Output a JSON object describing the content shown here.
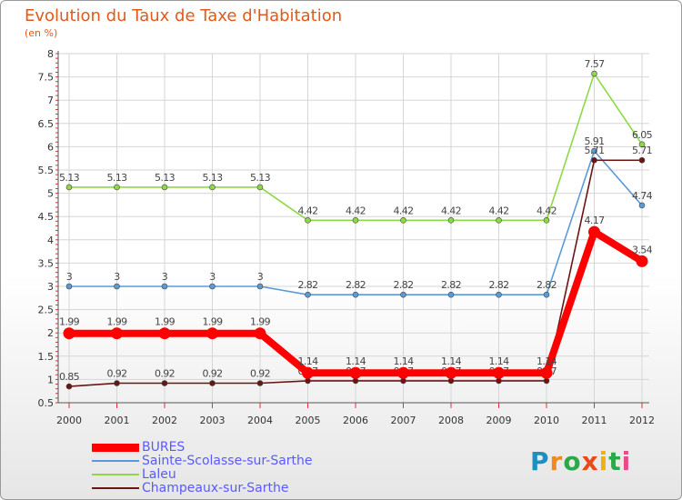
{
  "title": "Evolution du Taux de Taxe d'Habitation",
  "subtitle": "(en %)",
  "logo": {
    "letters": [
      "P",
      "r",
      "o",
      "x",
      "i",
      "t",
      "i"
    ],
    "colors": [
      "#1e90c0",
      "#f08a1c",
      "#2aa84a",
      "#e84a1a",
      "#f0b010",
      "#2aa84a",
      "#e84a8a"
    ]
  },
  "chart_data": {
    "type": "line",
    "title": "Evolution du Taux de Taxe d'Habitation",
    "ylabel": "(en %)",
    "x": [
      "2000",
      "2001",
      "2002",
      "2003",
      "2004",
      "2005",
      "2006",
      "2007",
      "2008",
      "2009",
      "2010",
      "2011",
      "2012"
    ],
    "ylim": [
      0.5,
      8
    ],
    "yticks": [
      "0.5",
      "1",
      "1.5",
      "2",
      "2.5",
      "3",
      "3.5",
      "4",
      "4.5",
      "5",
      "5.5",
      "6",
      "6.5",
      "7",
      "7.5",
      "8"
    ],
    "grid": true,
    "legend_position": "bottom-left",
    "series": [
      {
        "name": "Laleu",
        "color": "#8ed848",
        "values": [
          5.13,
          5.13,
          5.13,
          5.13,
          5.13,
          4.42,
          4.42,
          4.42,
          4.42,
          4.42,
          4.42,
          7.57,
          6.05
        ],
        "labels": [
          "5.13",
          "5.13",
          "5.13",
          "5.13",
          "5.13",
          "4.42",
          "4.42",
          "4.42",
          "4.42",
          "4.42",
          "4.42",
          "7.57",
          "6.05"
        ]
      },
      {
        "name": "Sainte-Scolasse-sur-Sarthe",
        "color": "#5b9ad6",
        "values": [
          3,
          3,
          3,
          3,
          3,
          2.82,
          2.82,
          2.82,
          2.82,
          2.82,
          2.82,
          5.91,
          4.74
        ],
        "labels": [
          "3",
          "3",
          "3",
          "3",
          "3",
          "2.82",
          "2.82",
          "2.82",
          "2.82",
          "2.82",
          "2.82",
          "5.91",
          "4.74"
        ]
      },
      {
        "name": "Champeaux-sur-Sarthe",
        "color": "#6b1414",
        "values": [
          0.85,
          0.92,
          0.92,
          0.92,
          0.92,
          0.97,
          0.97,
          0.97,
          0.97,
          0.97,
          0.97,
          5.71,
          5.71
        ],
        "labels": [
          "0.85",
          "0.92",
          "0.92",
          "0.92",
          "0.92",
          "0.97",
          "0.97",
          "0.97",
          "0.97",
          "0.97",
          "0.97",
          "5.71",
          "5.71"
        ]
      },
      {
        "name": "BURES",
        "color": "#ff0000",
        "values": [
          1.99,
          1.99,
          1.99,
          1.99,
          1.99,
          1.14,
          1.14,
          1.14,
          1.14,
          1.14,
          1.14,
          4.17,
          3.54
        ],
        "labels": [
          "1.99",
          "1.99",
          "1.99",
          "1.99",
          "1.99",
          "1.14",
          "1.14",
          "1.14",
          "1.14",
          "1.14",
          "1.14",
          "4.17",
          "3.54"
        ]
      }
    ],
    "legend": [
      "BURES",
      "Sainte-Scolasse-sur-Sarthe",
      "Laleu",
      "Champeaux-sur-Sarthe"
    ]
  }
}
